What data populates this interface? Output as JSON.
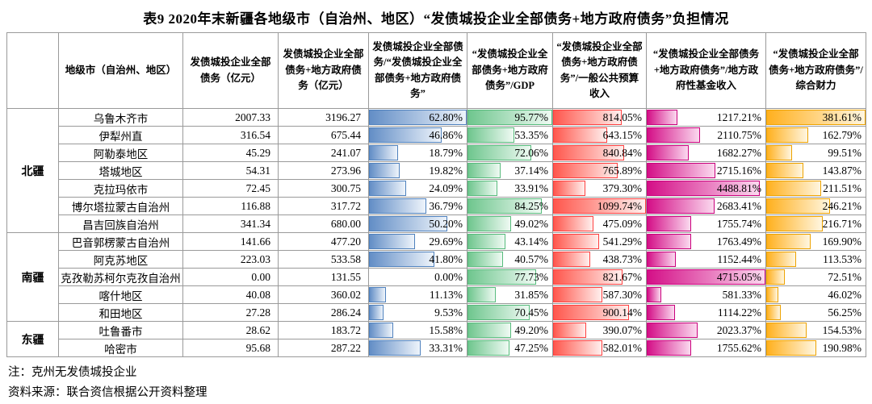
{
  "title": "表9 2020年末新疆各地级市（自治州、地区）“发债城投企业全部债务+地方政府债务”负担情况",
  "table": {
    "headers": [
      "",
      "地级市（自治州、地区）",
      "发债城投企业全部债务（亿元）",
      "发债城投企业全部债务+地方政府债务（亿元）",
      "发债城投企业全部债务/“发债城投企业全部债务+地方政府债务”",
      "“发债城投企业全部债务+地方政府债务”/GDP",
      "“发债城投企业全部债务+地方政府债务”/一般公共预算收入",
      "“发债城投企业全部债务+地方政府债务”/地方政府性基金收入",
      "“发债城投企业全部债务+地方政府债务”/综合财力"
    ],
    "ratio_columns": [
      {
        "key": "debt-share",
        "max": 62.8,
        "color_main": "#638ec6",
        "color_fade": "#eef4fb",
        "color_border": "#4f81bd"
      },
      {
        "key": "gdp",
        "max": 95.77,
        "color_main": "#6fc68e",
        "color_fade": "#effaf3",
        "color_border": "#57bb7c"
      },
      {
        "key": "budget-revenue",
        "max": 1099.74,
        "color_main": "#ff574d",
        "color_fade": "#fff0ee",
        "color_border": "#ff4040"
      },
      {
        "key": "fund-revenue",
        "max": 4715.05,
        "color_main": "#d40f87",
        "color_fade": "#fbd9ef",
        "color_border": "#c9007c"
      },
      {
        "key": "comprehensive",
        "max": 381.61,
        "color_main": "#ffb01e",
        "color_fade": "#fff6e0",
        "color_border": "#eda200"
      }
    ],
    "groups": [
      {
        "region": "北疆",
        "rows": [
          {
            "city": "乌鲁木齐市",
            "debt": "2007.33",
            "total": "3196.27",
            "ratios": [
              "62.80%",
              "95.77%",
              "814.05%",
              "1217.21%",
              "381.61%"
            ]
          },
          {
            "city": "伊犁州直",
            "debt": "316.54",
            "total": "675.44",
            "ratios": [
              "46.86%",
              "53.35%",
              "643.15%",
              "2110.75%",
              "162.79%"
            ]
          },
          {
            "city": "阿勒泰地区",
            "debt": "45.29",
            "total": "241.07",
            "ratios": [
              "18.79%",
              "72.06%",
              "840.84%",
              "1682.27%",
              "99.51%"
            ]
          },
          {
            "city": "塔城地区",
            "debt": "54.31",
            "total": "273.96",
            "ratios": [
              "19.82%",
              "37.14%",
              "765.89%",
              "2715.16%",
              "143.87%"
            ]
          },
          {
            "city": "克拉玛依市",
            "debt": "72.45",
            "total": "300.75",
            "ratios": [
              "24.09%",
              "33.91%",
              "379.30%",
              "4488.81%",
              "211.51%"
            ]
          },
          {
            "city": "博尔塔拉蒙古自治州",
            "debt": "116.88",
            "total": "317.72",
            "ratios": [
              "36.79%",
              "84.25%",
              "1099.74%",
              "2683.41%",
              "246.21%"
            ]
          },
          {
            "city": "昌吉回族自治州",
            "debt": "341.34",
            "total": "680.00",
            "ratios": [
              "50.20%",
              "49.02%",
              "475.09%",
              "1755.74%",
              "216.71%"
            ]
          }
        ]
      },
      {
        "region": "南疆",
        "rows": [
          {
            "city": "巴音郭楞蒙古自治州",
            "debt": "141.66",
            "total": "477.20",
            "ratios": [
              "29.69%",
              "43.14%",
              "541.29%",
              "1763.49%",
              "169.90%"
            ]
          },
          {
            "city": "阿克苏地区",
            "debt": "223.03",
            "total": "533.58",
            "ratios": [
              "41.80%",
              "40.57%",
              "438.73%",
              "1152.44%",
              "113.53%"
            ]
          },
          {
            "city": "克孜勒苏柯尔克孜自治州",
            "debt": "0.00",
            "total": "131.55",
            "ratios": [
              "0.00%",
              "77.73%",
              "821.67%",
              "4715.05%",
              "72.51%"
            ]
          },
          {
            "city": "喀什地区",
            "debt": "40.08",
            "total": "360.02",
            "ratios": [
              "11.13%",
              "31.85%",
              "587.30%",
              "581.33%",
              "46.02%"
            ]
          },
          {
            "city": "和田地区",
            "debt": "27.28",
            "total": "286.24",
            "ratios": [
              "9.53%",
              "70.45%",
              "900.14%",
              "1114.22%",
              "56.25%"
            ]
          }
        ]
      },
      {
        "region": "东疆",
        "rows": [
          {
            "city": "吐鲁番市",
            "debt": "28.62",
            "total": "183.72",
            "ratios": [
              "15.58%",
              "49.20%",
              "390.07%",
              "2023.37%",
              "154.53%"
            ]
          },
          {
            "city": "哈密市",
            "debt": "95.68",
            "total": "287.22",
            "ratios": [
              "33.31%",
              "47.25%",
              "582.01%",
              "1755.62%",
              "190.98%"
            ]
          }
        ]
      }
    ]
  },
  "notes": [
    "注：克州无发债城投企业",
    "资料来源：联合资信根据公开资料整理"
  ]
}
